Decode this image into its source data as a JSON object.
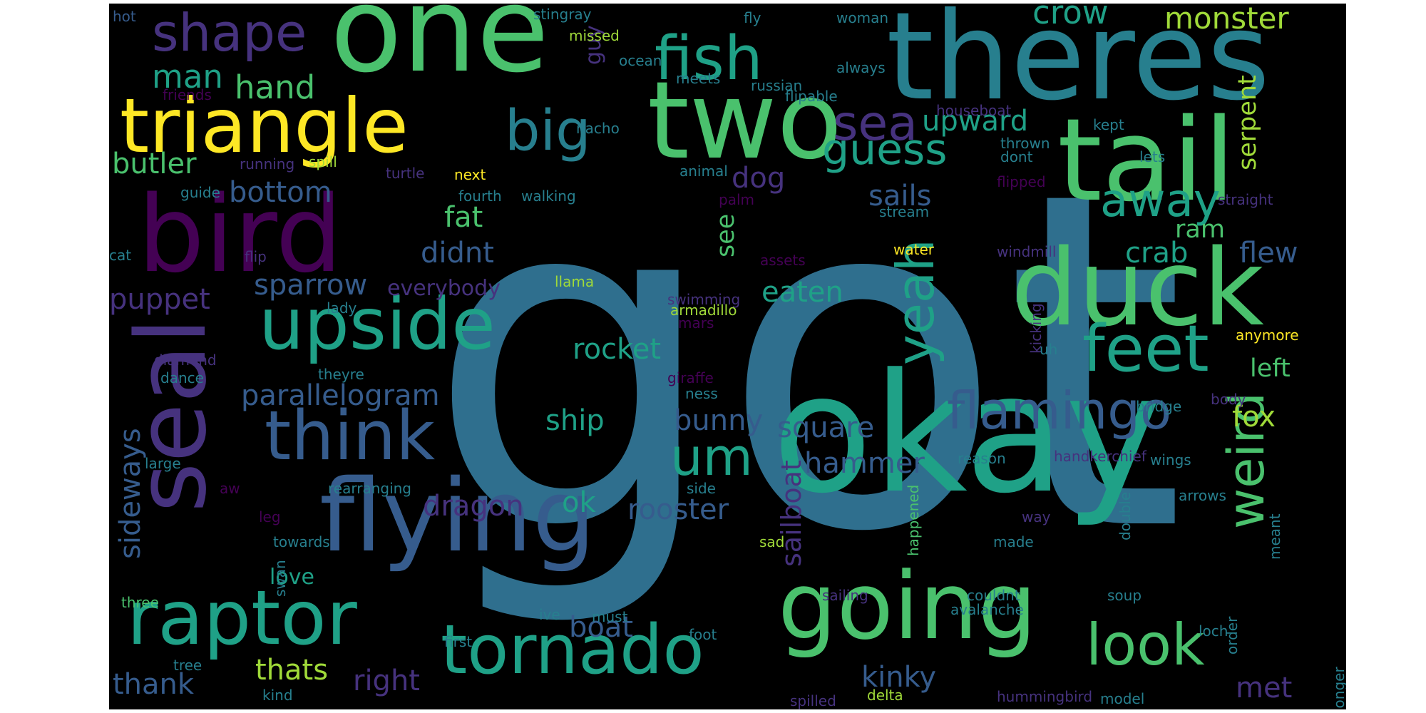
{
  "palette": {
    "purple": "#440154",
    "indigo": "#46327e",
    "slate": "#365c8d",
    "blue": "#2f6f8e",
    "teal": "#277f8e",
    "sea": "#1fa187",
    "green": "#4ac16d",
    "lime": "#a0da39",
    "yellow": "#fde725",
    "background": "#000000"
  },
  "words": [
    {
      "text": "got",
      "color": "blue"
    },
    {
      "text": "okay",
      "color": "sea"
    },
    {
      "text": "one",
      "color": "green"
    },
    {
      "text": "theres",
      "color": "teal"
    },
    {
      "text": "tail",
      "color": "green"
    },
    {
      "text": "two",
      "color": "green"
    },
    {
      "text": "bird",
      "color": "purple"
    },
    {
      "text": "seal",
      "color": "indigo"
    },
    {
      "text": "flying",
      "color": "slate"
    },
    {
      "text": "duck",
      "color": "green"
    },
    {
      "text": "going",
      "color": "green"
    },
    {
      "text": "triangle",
      "color": "yellow"
    },
    {
      "text": "upside",
      "color": "sea"
    },
    {
      "text": "raptor",
      "color": "sea"
    },
    {
      "text": "tornado",
      "color": "sea"
    },
    {
      "text": "think",
      "color": "slate"
    },
    {
      "text": "feet",
      "color": "sea"
    },
    {
      "text": "fish",
      "color": "sea"
    },
    {
      "text": "big",
      "color": "teal"
    },
    {
      "text": "shape",
      "color": "indigo"
    },
    {
      "text": "yeah",
      "color": "sea"
    },
    {
      "text": "look",
      "color": "green"
    },
    {
      "text": "flamingo",
      "color": "slate"
    },
    {
      "text": "um",
      "color": "sea"
    },
    {
      "text": "weird",
      "color": "green"
    },
    {
      "text": "sea",
      "color": "indigo"
    },
    {
      "text": "guess",
      "color": "sea"
    },
    {
      "text": "away",
      "color": "sea"
    },
    {
      "text": "crow",
      "color": "sea"
    },
    {
      "text": "monster",
      "color": "lime"
    },
    {
      "text": "man",
      "color": "sea"
    },
    {
      "text": "hand",
      "color": "green"
    },
    {
      "text": "butler",
      "color": "green"
    },
    {
      "text": "bottom",
      "color": "slate"
    },
    {
      "text": "upward",
      "color": "sea"
    },
    {
      "text": "dog",
      "color": "indigo"
    },
    {
      "text": "sails",
      "color": "slate"
    },
    {
      "text": "serpent",
      "color": "lime"
    },
    {
      "text": "ram",
      "color": "green"
    },
    {
      "text": "flew",
      "color": "slate"
    },
    {
      "text": "crab",
      "color": "sea"
    },
    {
      "text": "fat",
      "color": "green"
    },
    {
      "text": "didnt",
      "color": "slate"
    },
    {
      "text": "see",
      "color": "green"
    },
    {
      "text": "sparrow",
      "color": "slate"
    },
    {
      "text": "everybody",
      "color": "indigo"
    },
    {
      "text": "puppet",
      "color": "indigo"
    },
    {
      "text": "eaten",
      "color": "sea"
    },
    {
      "text": "rocket",
      "color": "sea"
    },
    {
      "text": "left",
      "color": "green"
    },
    {
      "text": "parallelogram",
      "color": "slate"
    },
    {
      "text": "ship",
      "color": "sea"
    },
    {
      "text": "bunny",
      "color": "slate"
    },
    {
      "text": "square",
      "color": "slate"
    },
    {
      "text": "fox",
      "color": "lime"
    },
    {
      "text": "hammer",
      "color": "slate"
    },
    {
      "text": "sideways",
      "color": "slate"
    },
    {
      "text": "dragon",
      "color": "indigo"
    },
    {
      "text": "ok",
      "color": "sea"
    },
    {
      "text": "rooster",
      "color": "slate"
    },
    {
      "text": "sailboat",
      "color": "indigo"
    },
    {
      "text": "boat",
      "color": "slate"
    },
    {
      "text": "thats",
      "color": "lime"
    },
    {
      "text": "right",
      "color": "indigo"
    },
    {
      "text": "kinky",
      "color": "slate"
    },
    {
      "text": "thank",
      "color": "slate"
    },
    {
      "text": "met",
      "color": "indigo"
    },
    {
      "text": "love",
      "color": "sea"
    },
    {
      "text": "guy",
      "color": "indigo"
    },
    {
      "text": "hot",
      "color": "slate"
    },
    {
      "text": "stingray",
      "color": "teal"
    },
    {
      "text": "fly",
      "color": "teal"
    },
    {
      "text": "woman",
      "color": "teal"
    },
    {
      "text": "missed",
      "color": "lime"
    },
    {
      "text": "ocean",
      "color": "teal"
    },
    {
      "text": "meets",
      "color": "teal"
    },
    {
      "text": "always",
      "color": "teal"
    },
    {
      "text": "russian",
      "color": "teal"
    },
    {
      "text": "friends",
      "color": "purple"
    },
    {
      "text": "flipable",
      "color": "teal"
    },
    {
      "text": "houseboat",
      "color": "indigo"
    },
    {
      "text": "nacho",
      "color": "teal"
    },
    {
      "text": "kept",
      "color": "teal"
    },
    {
      "text": "thrown",
      "color": "teal"
    },
    {
      "text": "running",
      "color": "indigo"
    },
    {
      "text": "spill",
      "color": "lime"
    },
    {
      "text": "turtle",
      "color": "indigo"
    },
    {
      "text": "next",
      "color": "yellow"
    },
    {
      "text": "animal",
      "color": "teal"
    },
    {
      "text": "dont",
      "color": "teal"
    },
    {
      "text": "lets",
      "color": "teal"
    },
    {
      "text": "flipped",
      "color": "purple"
    },
    {
      "text": "guide",
      "color": "teal"
    },
    {
      "text": "fourth",
      "color": "teal"
    },
    {
      "text": "walking",
      "color": "teal"
    },
    {
      "text": "palm",
      "color": "purple"
    },
    {
      "text": "straight",
      "color": "indigo"
    },
    {
      "text": "stream",
      "color": "teal"
    },
    {
      "text": "cat",
      "color": "teal"
    },
    {
      "text": "water",
      "color": "yellow"
    },
    {
      "text": "windmill",
      "color": "indigo"
    },
    {
      "text": "flip",
      "color": "indigo"
    },
    {
      "text": "assets",
      "color": "purple"
    },
    {
      "text": "llama",
      "color": "lime"
    },
    {
      "text": "swimming",
      "color": "indigo"
    },
    {
      "text": "lady",
      "color": "teal"
    },
    {
      "text": "armadillo",
      "color": "lime"
    },
    {
      "text": "mars",
      "color": "purple"
    },
    {
      "text": "kicking",
      "color": "indigo"
    },
    {
      "text": "anymore",
      "color": "yellow"
    },
    {
      "text": "diamond",
      "color": "indigo"
    },
    {
      "text": "uh",
      "color": "teal"
    },
    {
      "text": "dance",
      "color": "teal"
    },
    {
      "text": "theyre",
      "color": "teal"
    },
    {
      "text": "giraffe",
      "color": "purple"
    },
    {
      "text": "ness",
      "color": "teal"
    },
    {
      "text": "body",
      "color": "indigo"
    },
    {
      "text": "bridge",
      "color": "teal"
    },
    {
      "text": "happened",
      "color": "green"
    },
    {
      "text": "handkerchief",
      "color": "indigo"
    },
    {
      "text": "reason",
      "color": "teal"
    },
    {
      "text": "wings",
      "color": "teal"
    },
    {
      "text": "large",
      "color": "teal"
    },
    {
      "text": "aw",
      "color": "purple"
    },
    {
      "text": "rearranging",
      "color": "teal"
    },
    {
      "text": "side",
      "color": "teal"
    },
    {
      "text": "double",
      "color": "teal"
    },
    {
      "text": "arrows",
      "color": "teal"
    },
    {
      "text": "leg",
      "color": "purple"
    },
    {
      "text": "way",
      "color": "indigo"
    },
    {
      "text": "meant",
      "color": "teal"
    },
    {
      "text": "towards",
      "color": "teal"
    },
    {
      "text": "sad",
      "color": "lime"
    },
    {
      "text": "made",
      "color": "teal"
    },
    {
      "text": "swan",
      "color": "teal"
    },
    {
      "text": "sailing",
      "color": "indigo"
    },
    {
      "text": "couldnt",
      "color": "teal"
    },
    {
      "text": "soup",
      "color": "teal"
    },
    {
      "text": "order",
      "color": "teal"
    },
    {
      "text": "three",
      "color": "green"
    },
    {
      "text": "ive",
      "color": "teal"
    },
    {
      "text": "must",
      "color": "teal"
    },
    {
      "text": "avalanche",
      "color": "teal"
    },
    {
      "text": "foot",
      "color": "teal"
    },
    {
      "text": "loch",
      "color": "teal"
    },
    {
      "text": "first",
      "color": "teal"
    },
    {
      "text": "longer",
      "color": "teal"
    },
    {
      "text": "tree",
      "color": "teal"
    },
    {
      "text": "kind",
      "color": "teal"
    },
    {
      "text": "spilled",
      "color": "indigo"
    },
    {
      "text": "delta",
      "color": "lime"
    },
    {
      "text": "hummingbird",
      "color": "indigo"
    },
    {
      "text": "model",
      "color": "teal"
    }
  ]
}
